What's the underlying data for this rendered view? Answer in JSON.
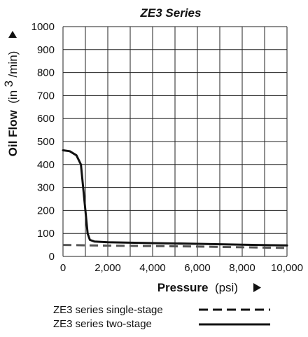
{
  "chart_data": {
    "type": "line",
    "title": "ZE3 Series",
    "xlabel": {
      "main": "Pressure",
      "unit": "(psi)"
    },
    "ylabel": {
      "main": "Oil Flow",
      "unit_pre": "(in",
      "unit_sup": "3",
      "unit_post": "/min)"
    },
    "xlim": [
      0,
      10000
    ],
    "ylim": [
      0,
      1000
    ],
    "x_ticks": [
      {
        "value": 0,
        "label": "0"
      },
      {
        "value": 2000,
        "label": "2,000"
      },
      {
        "value": 4000,
        "label": "4,000"
      },
      {
        "value": 6000,
        "label": "6,000"
      },
      {
        "value": 8000,
        "label": "8,000"
      },
      {
        "value": 10000,
        "label": "10,000"
      }
    ],
    "y_ticks": [
      {
        "value": 0,
        "label": "0"
      },
      {
        "value": 100,
        "label": "100"
      },
      {
        "value": 200,
        "label": "200"
      },
      {
        "value": 300,
        "label": "300"
      },
      {
        "value": 400,
        "label": "400"
      },
      {
        "value": 500,
        "label": "500"
      },
      {
        "value": 600,
        "label": "600"
      },
      {
        "value": 700,
        "label": "700"
      },
      {
        "value": 800,
        "label": "800"
      },
      {
        "value": 900,
        "label": "900"
      },
      {
        "value": 1000,
        "label": "1000"
      }
    ],
    "x_grid_lines": [
      0,
      1000,
      2000,
      3000,
      4000,
      5000,
      6000,
      7000,
      8000,
      9000,
      10000
    ],
    "y_grid_lines": [
      0,
      100,
      200,
      300,
      400,
      500,
      600,
      700,
      800,
      900,
      1000
    ],
    "grid": true,
    "legend_position": "bottom",
    "series": [
      {
        "name": "ZE3 series single-stage",
        "style": "dashed",
        "color": "#555555",
        "points": [
          [
            0,
            50
          ],
          [
            2000,
            47
          ],
          [
            4000,
            45
          ],
          [
            6000,
            43
          ],
          [
            8000,
            40
          ],
          [
            10000,
            37
          ]
        ]
      },
      {
        "name": "ZE3 series two-stage",
        "style": "solid",
        "color": "#111111",
        "points": [
          [
            0,
            462
          ],
          [
            300,
            458
          ],
          [
            600,
            440
          ],
          [
            800,
            400
          ],
          [
            900,
            300
          ],
          [
            1000,
            200
          ],
          [
            1100,
            100
          ],
          [
            1200,
            72
          ],
          [
            1400,
            65
          ],
          [
            2000,
            62
          ],
          [
            4000,
            58
          ],
          [
            6000,
            55
          ],
          [
            8000,
            51
          ],
          [
            10000,
            48
          ]
        ]
      }
    ]
  }
}
